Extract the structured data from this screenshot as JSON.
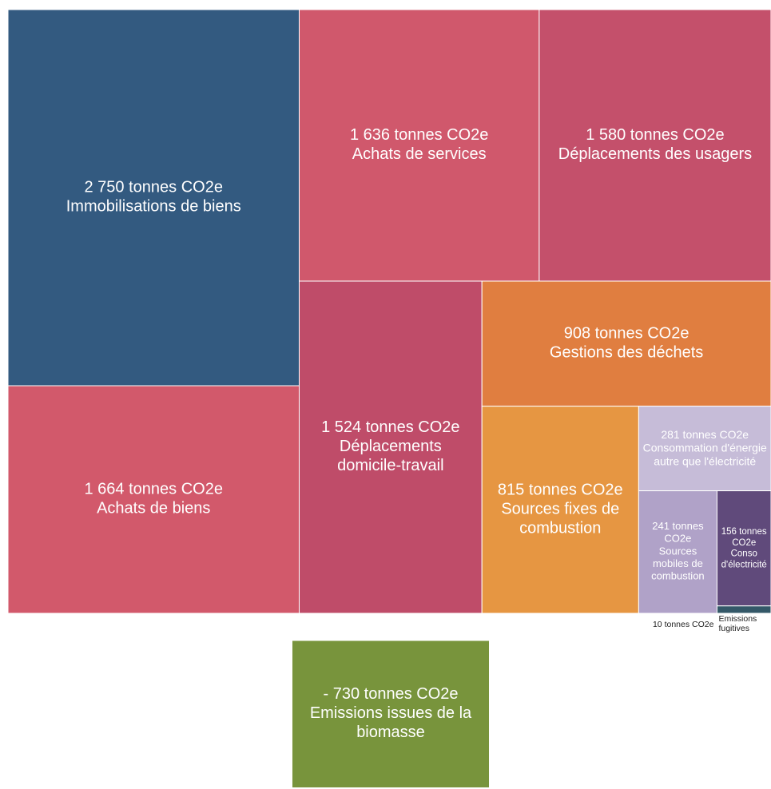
{
  "chart_data": {
    "type": "treemap",
    "categories": [
      "Immobilisations de biens",
      "Achats de biens",
      "Achats de services",
      "Déplacements des usagers",
      "Déplacements domicile-travail",
      "Gestions des déchets",
      "Sources fixes de combustion",
      "Consommation d'énergie autre que l'électricité",
      "Sources mobiles de combustion",
      "Conso d'électricité",
      "Emissions fugitives",
      "Emissions issues de la biomasse"
    ],
    "values": [
      2750,
      1664,
      1636,
      1580,
      1524,
      908,
      815,
      281,
      241,
      156,
      10,
      -730
    ],
    "value_labels": [
      "2 750 tonnes CO2e",
      "1 664 tonnes CO2e",
      "1 636 tonnes CO2e",
      "1 580 tonnes CO2e",
      "1 524 tonnes CO2e",
      "908 tonnes CO2e",
      "815 tonnes CO2e",
      "281 tonnes CO2e",
      "241 tonnes CO2e",
      "156 tonnes CO2e",
      "10 tonnes CO2e",
      "- 730 tonnes CO2e"
    ],
    "colors": [
      "#335a80",
      "#d2596b",
      "#d0586c",
      "#c4506b",
      "#bf4c69",
      "#e07e40",
      "#e69642",
      "#c6bcd8",
      "#b0a2c8",
      "#604a7b",
      "#345868",
      "#78943c"
    ]
  }
}
